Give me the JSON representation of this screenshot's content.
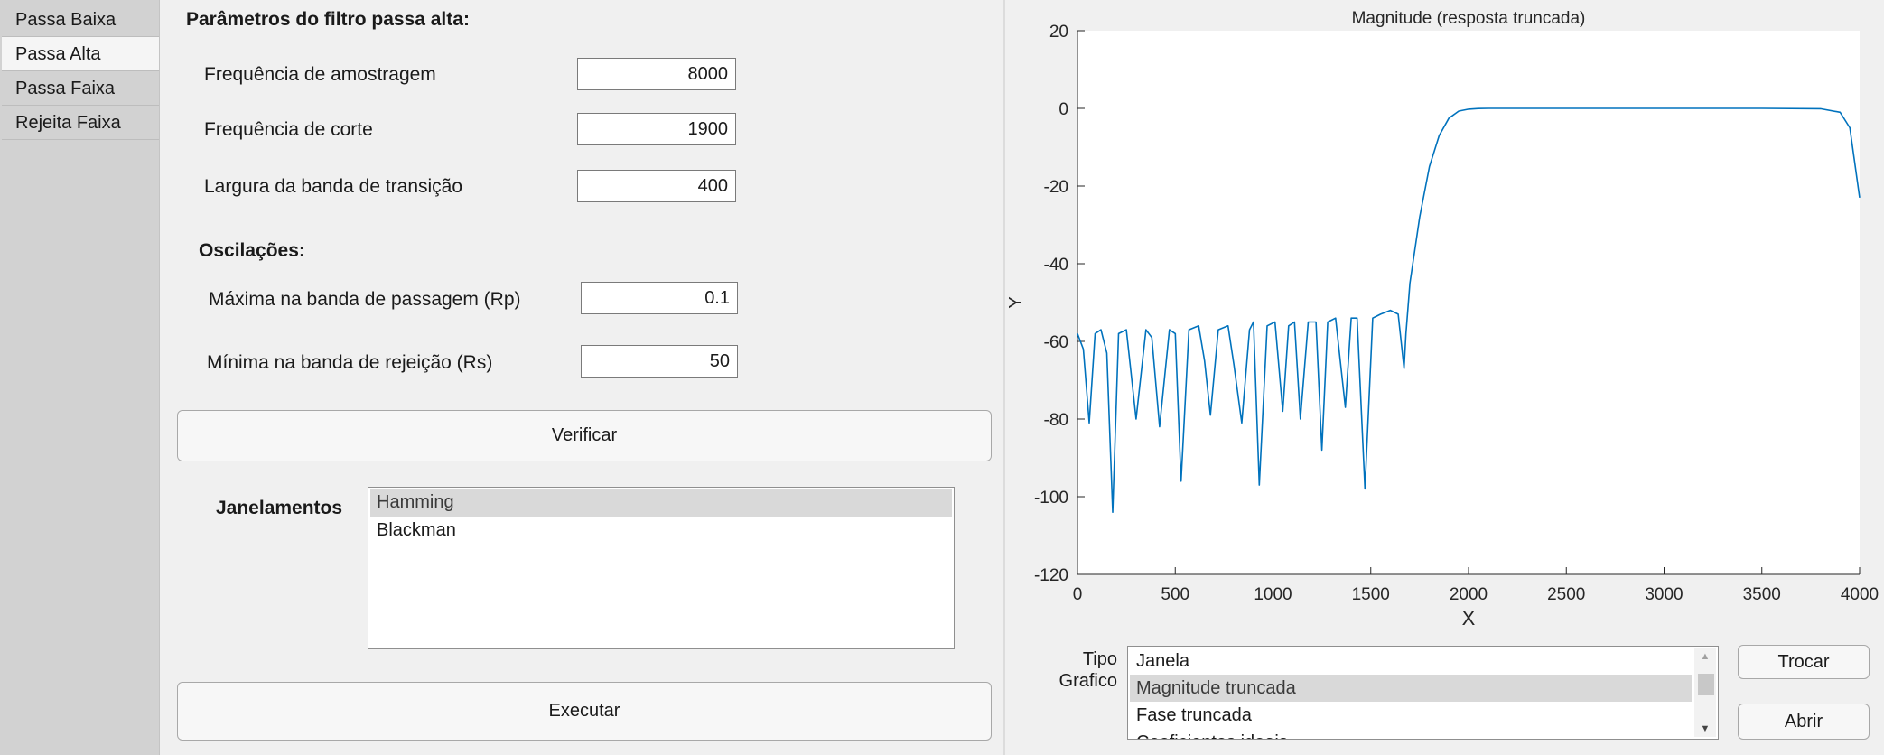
{
  "tabs": [
    {
      "label": "Passa Baixa",
      "active": false
    },
    {
      "label": "Passa Alta",
      "active": true
    },
    {
      "label": "Passa Faixa",
      "active": false
    },
    {
      "label": "Rejeita Faixa",
      "active": false
    }
  ],
  "params": {
    "section_title": "Parâmetros do filtro passa alta:",
    "fs_label": "Frequência de amostragem",
    "fs_value": "8000",
    "fc_label": "Frequência de corte",
    "fc_value": "1900",
    "bw_label": "Largura da banda de transição",
    "bw_value": "400",
    "osc_title": "Oscilações:",
    "rp_label": "Máxima na banda de passagem (Rp)",
    "rp_value": "0.1",
    "rs_label": "Mínima na banda de rejeição (Rs)",
    "rs_value": "50",
    "verify_label": "Verificar",
    "windows_label": "Janelamentos",
    "windows": [
      "Hamming",
      "Blackman"
    ],
    "windows_selected": "Hamming",
    "run_label": "Executar"
  },
  "plot_controls": {
    "type_label_line1": "Tipo",
    "type_label_line2": "Grafico",
    "options": [
      "Janela",
      "Magnitude truncada",
      "Fase truncada",
      "Coeficientes ideais"
    ],
    "selected": "Magnitude truncada",
    "swap_label": "Trocar",
    "open_label": "Abrir",
    "scroll_up_glyph": "▲",
    "scroll_down_glyph": "▼"
  },
  "chart_data": {
    "type": "line",
    "title": "Magnitude (resposta truncada)",
    "xlabel": "X",
    "ylabel": "Y",
    "xlim": [
      0,
      4000
    ],
    "ylim": [
      -120,
      20
    ],
    "xticks": [
      "0",
      "500",
      "1000",
      "1500",
      "2000",
      "2500",
      "3000",
      "3500",
      "4000"
    ],
    "yticks": [
      "20",
      "0",
      "-20",
      "-40",
      "-60",
      "-80",
      "-100",
      "-120"
    ],
    "grid": false,
    "series": [
      {
        "color": "#0072bd",
        "x": [
          0,
          30,
          60,
          90,
          120,
          150,
          180,
          210,
          250,
          300,
          350,
          380,
          420,
          470,
          500,
          530,
          570,
          620,
          650,
          680,
          720,
          770,
          800,
          840,
          880,
          900,
          930,
          970,
          1010,
          1050,
          1080,
          1110,
          1140,
          1180,
          1220,
          1250,
          1280,
          1320,
          1370,
          1400,
          1430,
          1470,
          1510,
          1550,
          1600,
          1640,
          1670,
          1680,
          1700,
          1750,
          1800,
          1850,
          1900,
          1950,
          2000,
          2050,
          2100,
          2200,
          2500,
          3000,
          3500,
          3800,
          3900,
          3950,
          4000
        ],
        "y": [
          -58,
          -62,
          -81,
          -58,
          -57,
          -63,
          -104,
          -58,
          -57,
          -80,
          -57,
          -59,
          -82,
          -57,
          -58,
          -96,
          -57,
          -56,
          -65,
          -79,
          -57,
          -56,
          -66,
          -81,
          -57,
          -55,
          -97,
          -56,
          -55,
          -78,
          -56,
          -55,
          -80,
          -55,
          -55,
          -88,
          -55,
          -54,
          -77,
          -54,
          -54,
          -98,
          -54,
          -53,
          -52,
          -53,
          -67,
          -58,
          -45,
          -28,
          -15,
          -7,
          -2.5,
          -0.7,
          -0.2,
          -0.05,
          0,
          0,
          0,
          0,
          0,
          -0.1,
          -1,
          -5,
          -23
        ]
      }
    ]
  }
}
